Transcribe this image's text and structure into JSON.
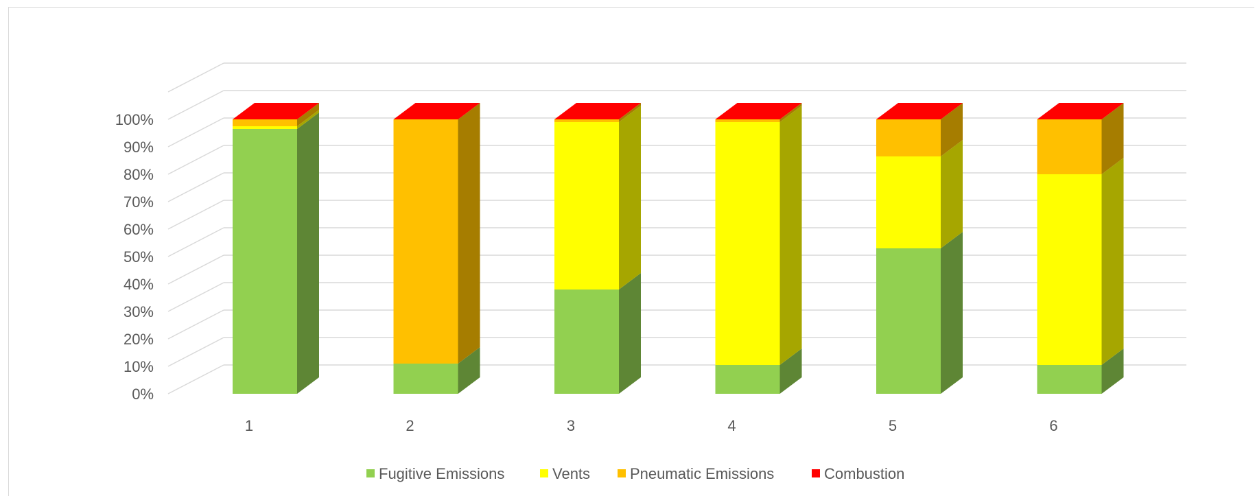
{
  "chart_data": {
    "type": "bar",
    "stacked": true,
    "percent_stacked": true,
    "three_d": true,
    "title": "",
    "xlabel": "",
    "ylabel": "",
    "categories": [
      "1",
      "2",
      "3",
      "4",
      "5",
      "6"
    ],
    "y_tick_labels": [
      "0%",
      "10%",
      "20%",
      "30%",
      "40%",
      "50%",
      "60%",
      "70%",
      "80%",
      "90%",
      "100%"
    ],
    "ylim": [
      0,
      100
    ],
    "grid": true,
    "legend_position": "bottom",
    "series": [
      {
        "name": "Fugitive Emissions",
        "color": "#92d050",
        "side_color": "#5e8635",
        "values": [
          96.5,
          11,
          38,
          10.5,
          53,
          10.5
        ]
      },
      {
        "name": "Vents",
        "color": "#ffff00",
        "side_color": "#a6a600",
        "values": [
          1,
          0,
          61,
          88.5,
          33.5,
          69.5
        ]
      },
      {
        "name": "Pneumatic Emissions",
        "color": "#ffc000",
        "side_color": "#a67d00",
        "values": [
          2.5,
          89,
          1,
          1,
          13.5,
          20
        ]
      },
      {
        "name": "Combustion",
        "color": "#ff0000",
        "side_color": "#c00000",
        "values": [
          0,
          0,
          0,
          0,
          0,
          0
        ]
      }
    ]
  }
}
